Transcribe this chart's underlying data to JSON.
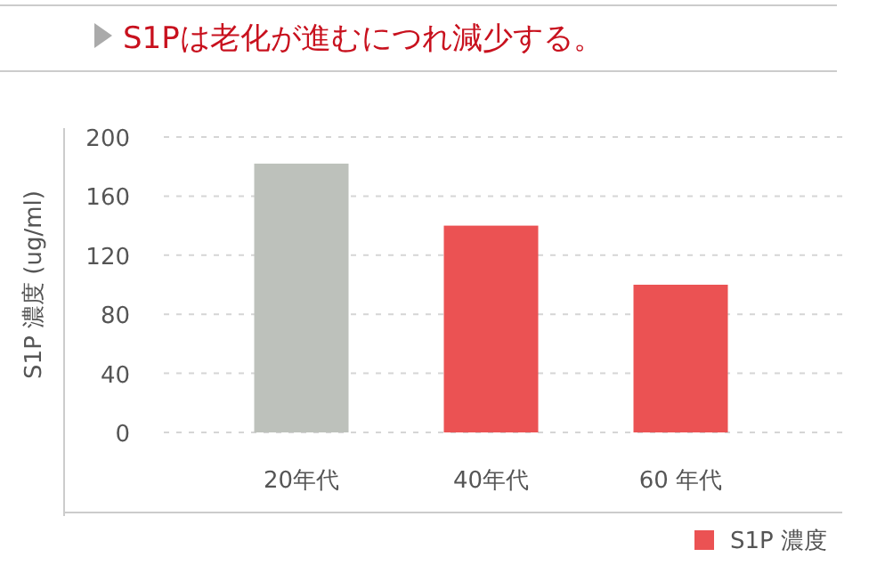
{
  "chart_data": {
    "type": "bar",
    "title": "S1Pは老化が進むにつれ減少する。",
    "ylabel": "S1P 濃度 (ug/ml)",
    "categories": [
      "20年代",
      "40年代",
      "60 年代"
    ],
    "series": [
      {
        "name": "S1P 濃度",
        "color": "#eb5253",
        "colors": [
          "#bdc1bb",
          "#eb5253",
          "#eb5253"
        ],
        "values": [
          182,
          140,
          100
        ]
      }
    ],
    "ylim": [
      0,
      200
    ],
    "yticks": [
      0,
      40,
      80,
      120,
      160,
      200
    ],
    "grid": "y",
    "legend": "bottom right"
  }
}
